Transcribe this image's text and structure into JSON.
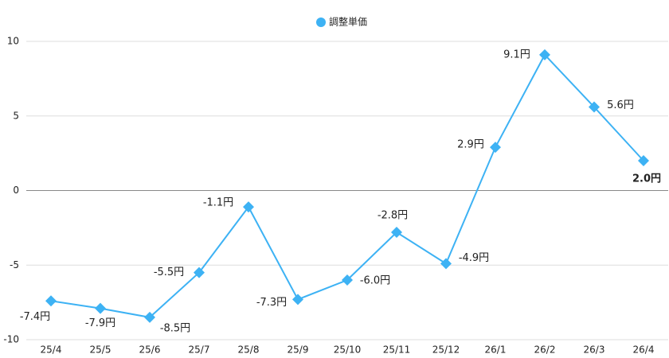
{
  "chart_data": {
    "type": "line",
    "categories": [
      "25/4",
      "25/5",
      "25/6",
      "25/7",
      "25/8",
      "25/9",
      "25/10",
      "25/11",
      "25/12",
      "26/1",
      "26/2",
      "26/3",
      "26/4"
    ],
    "series": [
      {
        "name": "調整単価",
        "color": "#3db2f4",
        "values": [
          -7.4,
          -7.9,
          -8.5,
          -5.5,
          -1.1,
          -7.3,
          -6.0,
          -2.8,
          -4.9,
          2.9,
          9.1,
          5.6,
          2.0
        ],
        "value_labels": [
          "-7.4円",
          "-7.9円",
          "-8.5円",
          "-5.5円",
          "-1.1円",
          "-7.3円",
          "-6.0円",
          "-2.8円",
          "-4.9円",
          "2.9円",
          "9.1円",
          "5.6円",
          "2.0円"
        ]
      }
    ],
    "ylim": [
      -10,
      10
    ],
    "yticks": [
      -10,
      -5,
      0,
      5,
      10
    ],
    "grid": true
  }
}
